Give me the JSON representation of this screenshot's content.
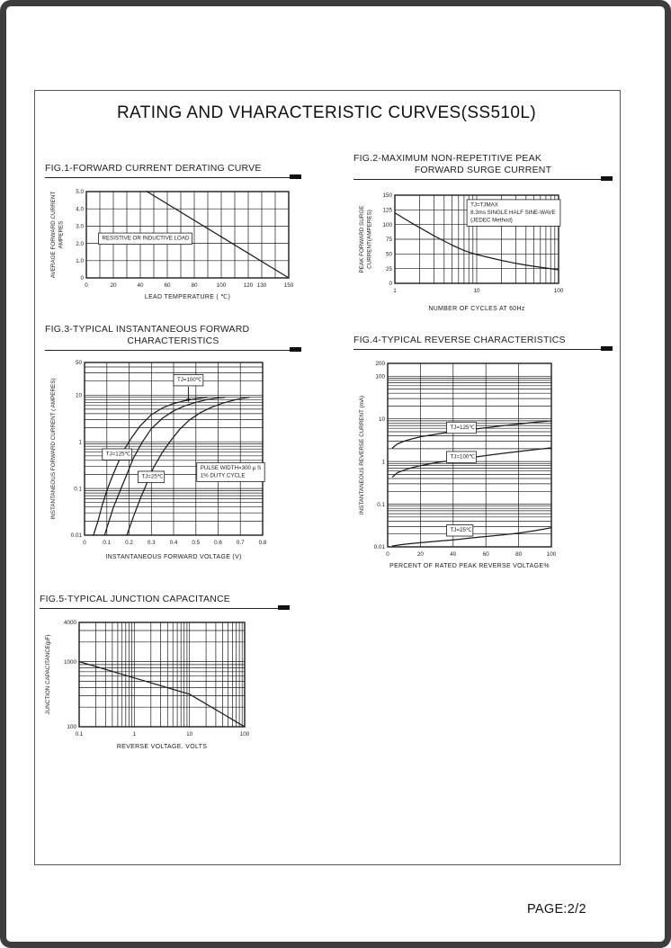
{
  "page": {
    "title": "RATING AND VHARACTERISTIC CURVES(SS510L)",
    "page_label": "PAGE:2/2"
  },
  "colors": {
    "ink": "#1c1c1c",
    "frame": "#3d3d3d",
    "inner_border": "#555555",
    "annotation_bg": "#ffffff"
  },
  "figures": [
    {
      "title_lines": [
        "FIG.1-FORWARD CURRENT DERATING CURVE"
      ]
    },
    {
      "title_lines": [
        "FIG.2-MAXIMUM NON-REPETITIVE PEAK",
        "FORWARD SURGE CURRENT"
      ]
    },
    {
      "title_lines": [
        "FIG.3-TYPICAL INSTANTANEOUS FORWARD",
        "CHARACTERISTICS"
      ]
    },
    {
      "title_lines": [
        "FIG.4-TYPICAL REVERSE CHARACTERISTICS"
      ]
    },
    {
      "title_lines": [
        "FIG.5-TYPICAL JUNCTION CAPACITANCE"
      ]
    }
  ],
  "chart_data": [
    {
      "type": "line",
      "title": "FIG.1-FORWARD CURRENT DERATING CURVE",
      "x": {
        "label": "LEAD  TEMPERATURE ( ℃)",
        "scale": "linear",
        "min": 0,
        "max": 150,
        "grid_step": 10,
        "ticks": [
          [
            0,
            "0"
          ],
          [
            20,
            "20"
          ],
          [
            40,
            "40"
          ],
          [
            60,
            "60"
          ],
          [
            80,
            "80"
          ],
          [
            100,
            "100"
          ],
          [
            120,
            "120"
          ],
          [
            130,
            "130"
          ],
          [
            150,
            "150"
          ]
        ]
      },
      "y": {
        "label_lines": [
          "AVERAGE FORWARD CURRENT",
          "AMPERES"
        ],
        "scale": "linear",
        "min": 0,
        "max": 5,
        "grid_step": 1,
        "ticks": [
          [
            0,
            "0"
          ],
          [
            1,
            "1.0"
          ],
          [
            2,
            "2.0"
          ],
          [
            3,
            "3.0"
          ],
          [
            4,
            "4.0"
          ],
          [
            5,
            "5.0"
          ]
        ]
      },
      "series": [
        {
          "name": "derating",
          "points": [
            [
              45,
              5.0
            ],
            [
              150,
              0
            ]
          ]
        }
      ],
      "annotations": [
        {
          "lines": [
            "RESISTIVE OR INDUCTIVE LOAD"
          ],
          "fx": 0.06,
          "fy": 0.48,
          "box": true
        }
      ]
    },
    {
      "type": "line",
      "title": "FIG.2-MAXIMUM NON-REPETITIVE PEAK FORWARD SURGE CURRENT",
      "x": {
        "label": "NUMBER OF CYCLES AT 60Hz",
        "scale": "log",
        "min": 1,
        "max": 100,
        "ticks": [
          [
            1,
            "1"
          ],
          [
            10,
            "10"
          ],
          [
            100,
            "100"
          ]
        ]
      },
      "y": {
        "label_lines": [
          "PEAK FORWARD SURGE",
          "CURRENT(AMPERES)"
        ],
        "scale": "linear",
        "min": 0,
        "max": 150,
        "grid_step": 25,
        "ticks": [
          [
            0,
            "0"
          ],
          [
            25,
            "25"
          ],
          [
            50,
            "50"
          ],
          [
            75,
            "75"
          ],
          [
            100,
            "100"
          ],
          [
            125,
            "125"
          ],
          [
            150,
            "150"
          ]
        ]
      },
      "series": [
        {
          "name": "surge current",
          "points": [
            [
              1,
              120
            ],
            [
              1.5,
              105
            ],
            [
              2,
              95
            ],
            [
              3,
              81
            ],
            [
              4,
              72
            ],
            [
              5,
              65
            ],
            [
              6,
              60
            ],
            [
              7,
              56
            ],
            [
              8,
              53
            ],
            [
              10,
              49
            ],
            [
              15,
              43
            ],
            [
              20,
              39
            ],
            [
              30,
              34
            ],
            [
              40,
              31
            ],
            [
              50,
              29
            ],
            [
              70,
              26
            ],
            [
              100,
              23
            ]
          ]
        }
      ],
      "annotations": [
        {
          "lines": [
            "TJ=TJMAX",
            "8.3ms SINGLE HALF SINE-WAVE",
            "(JEDEC Method)"
          ],
          "fx": 0.44,
          "fy": 0.05,
          "box": true
        }
      ]
    },
    {
      "type": "line",
      "title": "FIG.3-TYPICAL INSTANTANEOUS FORWARD CHARACTERISTICS",
      "x": {
        "label": "INSTANTANEOUS FORWARD VOLTAGE (V)",
        "scale": "linear",
        "min": 0,
        "max": 0.8,
        "grid_step": 0.1,
        "ticks": [
          [
            0,
            "0"
          ],
          [
            0.1,
            "0.1"
          ],
          [
            0.2,
            "0.2"
          ],
          [
            0.3,
            "0.3"
          ],
          [
            0.4,
            "0.4"
          ],
          [
            0.5,
            "0.5"
          ],
          [
            0.6,
            "0.6"
          ],
          [
            0.7,
            "0.7"
          ],
          [
            0.8,
            "0.8"
          ]
        ]
      },
      "y": {
        "label_lines": [
          "INSTANTANEOUS FORWARD CURRENT ( AMPERES)"
        ],
        "scale": "log",
        "min": 0.01,
        "max": 50,
        "ticks": [
          [
            0.01,
            "0.01"
          ],
          [
            0.1,
            "0.1"
          ],
          [
            1,
            "1"
          ],
          [
            10,
            "10"
          ],
          [
            50,
            "50"
          ]
        ]
      },
      "series": [
        {
          "name": "TJ=125℃",
          "points": [
            [
              0.04,
              0.01
            ],
            [
              0.06,
              0.02
            ],
            [
              0.08,
              0.045
            ],
            [
              0.1,
              0.09
            ],
            [
              0.12,
              0.16
            ],
            [
              0.15,
              0.35
            ],
            [
              0.18,
              0.7
            ],
            [
              0.21,
              1.2
            ],
            [
              0.25,
              2.2
            ],
            [
              0.3,
              3.8
            ],
            [
              0.35,
              5.3
            ],
            [
              0.4,
              6.6
            ],
            [
              0.45,
              7.6
            ],
            [
              0.5,
              8.4
            ],
            [
              0.55,
              9.0
            ]
          ]
        },
        {
          "name": "TJ=100℃",
          "points": [
            [
              0.09,
              0.01
            ],
            [
              0.11,
              0.02
            ],
            [
              0.13,
              0.04
            ],
            [
              0.16,
              0.09
            ],
            [
              0.19,
              0.2
            ],
            [
              0.22,
              0.45
            ],
            [
              0.26,
              1.0
            ],
            [
              0.3,
              1.9
            ],
            [
              0.35,
              3.2
            ],
            [
              0.4,
              4.6
            ],
            [
              0.45,
              5.9
            ],
            [
              0.5,
              7.0
            ],
            [
              0.55,
              8.0
            ],
            [
              0.6,
              8.7
            ],
            [
              0.63,
              9.0
            ]
          ]
        },
        {
          "name": "TJ=25℃",
          "points": [
            [
              0.19,
              0.01
            ],
            [
              0.22,
              0.025
            ],
            [
              0.25,
              0.06
            ],
            [
              0.28,
              0.13
            ],
            [
              0.31,
              0.28
            ],
            [
              0.35,
              0.6
            ],
            [
              0.39,
              1.1
            ],
            [
              0.43,
              1.9
            ],
            [
              0.47,
              2.9
            ],
            [
              0.52,
              4.2
            ],
            [
              0.57,
              5.5
            ],
            [
              0.62,
              6.7
            ],
            [
              0.67,
              7.8
            ],
            [
              0.71,
              8.6
            ],
            [
              0.74,
              9.0
            ]
          ]
        }
      ],
      "annotations": [
        {
          "lines": [
            "TJ=100℃"
          ],
          "fx": 0.5,
          "fy": 0.07,
          "box": true,
          "arrow_down": 18
        },
        {
          "lines": [
            "TJ=125℃"
          ],
          "fx": 0.1,
          "fy": 0.5,
          "box": true
        },
        {
          "lines": [
            "TJ=25℃"
          ],
          "fx": 0.3,
          "fy": 0.63,
          "box": true
        },
        {
          "lines": [
            "PULSE WIDTH=300 μ S",
            "1% DUTY CYCLE"
          ],
          "fx": 0.63,
          "fy": 0.58,
          "box": true
        }
      ]
    },
    {
      "type": "line",
      "title": "FIG.4-TYPICAL REVERSE CHARACTERISTICS",
      "x": {
        "label": "PERCENT OF RATED PEAK REVERSE VOLTAGE%",
        "scale": "linear",
        "min": 0,
        "max": 100,
        "grid_step": 20,
        "ticks": [
          [
            0,
            "0"
          ],
          [
            20,
            "20"
          ],
          [
            40,
            "40"
          ],
          [
            60,
            "60"
          ],
          [
            80,
            "80"
          ],
          [
            100,
            "100"
          ]
        ]
      },
      "y": {
        "label_lines": [
          "INSTANTANEOUS REVERSE CURRENT (mA)"
        ],
        "scale": "log",
        "min": 0.01,
        "max": 200,
        "ticks": [
          [
            0.01,
            "0.01"
          ],
          [
            0.1,
            "0.1"
          ],
          [
            1,
            "1"
          ],
          [
            10,
            "10"
          ],
          [
            100,
            "100"
          ],
          [
            200,
            "200"
          ]
        ]
      },
      "series": [
        {
          "name": "TJ=125℃",
          "points": [
            [
              3,
              2.1
            ],
            [
              6,
              2.6
            ],
            [
              10,
              3.0
            ],
            [
              15,
              3.4
            ],
            [
              20,
              3.8
            ],
            [
              30,
              4.4
            ],
            [
              40,
              5.0
            ],
            [
              50,
              5.6
            ],
            [
              60,
              6.2
            ],
            [
              70,
              6.9
            ],
            [
              80,
              7.6
            ],
            [
              90,
              8.3
            ],
            [
              100,
              9.0
            ]
          ]
        },
        {
          "name": "TJ=100℃",
          "points": [
            [
              3,
              0.44
            ],
            [
              6,
              0.55
            ],
            [
              10,
              0.63
            ],
            [
              15,
              0.72
            ],
            [
              20,
              0.8
            ],
            [
              30,
              0.95
            ],
            [
              40,
              1.08
            ],
            [
              50,
              1.22
            ],
            [
              60,
              1.38
            ],
            [
              70,
              1.55
            ],
            [
              80,
              1.72
            ],
            [
              90,
              1.9
            ],
            [
              100,
              2.1
            ]
          ]
        },
        {
          "name": "TJ=25℃",
          "points": [
            [
              3,
              0.0105
            ],
            [
              10,
              0.0115
            ],
            [
              20,
              0.0125
            ],
            [
              30,
              0.0135
            ],
            [
              40,
              0.0145
            ],
            [
              50,
              0.016
            ],
            [
              60,
              0.0175
            ],
            [
              70,
              0.019
            ],
            [
              80,
              0.021
            ],
            [
              90,
              0.024
            ],
            [
              100,
              0.028
            ]
          ]
        }
      ],
      "annotations": [
        {
          "lines": [
            "TJ=125℃"
          ],
          "fx": 0.36,
          "fy": 0.32,
          "box": true
        },
        {
          "lines": [
            "TJ=100℃"
          ],
          "fx": 0.36,
          "fy": 0.48,
          "box": true
        },
        {
          "lines": [
            "TJ=25℃"
          ],
          "fx": 0.36,
          "fy": 0.88,
          "box": true
        }
      ]
    },
    {
      "type": "line",
      "title": "FIG.5-TYPICAL JUNCTION CAPACITANCE",
      "x": {
        "label": "REVERSE VOLTAGE. VOLTS",
        "scale": "log",
        "min": 0.1,
        "max": 100,
        "ticks": [
          [
            0.1,
            "0.1"
          ],
          [
            1,
            "1"
          ],
          [
            10,
            "10"
          ],
          [
            100,
            "100"
          ]
        ]
      },
      "y": {
        "label_lines": [
          "JUNCTION CAPACITANCE(pF)"
        ],
        "scale": "log",
        "min": 100,
        "max": 4000,
        "ticks": [
          [
            100,
            "100"
          ],
          [
            1000,
            "1000"
          ],
          [
            4000,
            "4000"
          ]
        ]
      },
      "series": [
        {
          "name": "junction capacitance",
          "points": [
            [
              0.1,
              1000
            ],
            [
              1,
              562
            ],
            [
              10,
              316
            ],
            [
              100,
              100
            ]
          ]
        }
      ],
      "annotations": []
    }
  ]
}
